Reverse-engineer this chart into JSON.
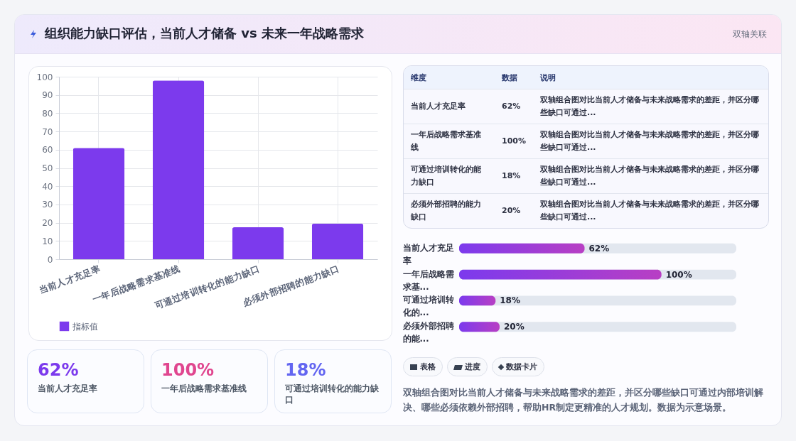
{
  "chart_data": [
    {
      "type": "bar",
      "categories": [
        "当前人才充足率",
        "一年后战略需求基准线",
        "可通过培训转化的能力缺口",
        "必须外部招聘的能力缺口"
      ],
      "series": [
        {
          "name": "指标值",
          "color": "#7c3aed",
          "values": [
            61,
            98,
            17.5,
            19.5
          ]
        }
      ],
      "ylim": [
        0,
        100
      ],
      "yticks": [
        0,
        10,
        20,
        30,
        40,
        50,
        60,
        70,
        80,
        90,
        100
      ],
      "grid": true,
      "legend": "bottom"
    },
    {
      "type": "other",
      "categories": [
        "当前人才充足率",
        "一年后战略需求基准线",
        "可通过培训转化的能力缺口",
        "必须外部招聘的能力缺口"
      ],
      "value_labels": [
        "62%",
        "100%",
        "18%",
        "20%"
      ],
      "annotations": [
        "维度",
        "数据",
        "说明",
        "双轴组合图对比当前人才储备与未来战略需求的差距，并区分哪些缺口可通过...",
        "双轴组合图对比当前人才储备与未来战略需求的差距，并区分哪些缺口可通过...",
        "双轴组合图对比当前人才储备与未来战略需求的差距，并区分哪些缺口可通过...",
        "双轴组合图对比当前人才储备与未来战略需求的差距，并区分哪些缺口可通过..."
      ]
    },
    {
      "type": "bar",
      "orientation": "horizontal",
      "categories": [
        "当前人才充足率",
        "一年后战略需求基...",
        "可通过培训转化的...",
        "必须外部招聘的能..."
      ],
      "values": [
        62,
        100,
        18,
        20
      ],
      "color": "#b83fc4",
      "xlim": [
        0,
        137
      ],
      "tick_labels": false,
      "value_labels": [
        "62%",
        "100%",
        "18%",
        "20%"
      ]
    },
    {
      "type": "other",
      "categories": [
        "当前人才充足率",
        "一年后战略需求基准线",
        "可通过培训转化的能力缺口"
      ],
      "value_labels": [
        "62%",
        "100%",
        "18%"
      ]
    },
    {
      "type": "other",
      "annotations": [
        "表格",
        "进度",
        "数据卡片",
        "双轴组合图对比当前人才储备与未来战略需求的差距，并区分哪些缺口可通过内部培训解决、哪些必须依赖外部招聘，帮助HR制定更精准的人才规划。数据为示意场景。"
      ]
    },
    {
      "type": "other",
      "title": "组织能力缺口评估，当前人才储备 vs 未来一年战略需求",
      "subtitle": "双轴关联"
    }
  ]
}
